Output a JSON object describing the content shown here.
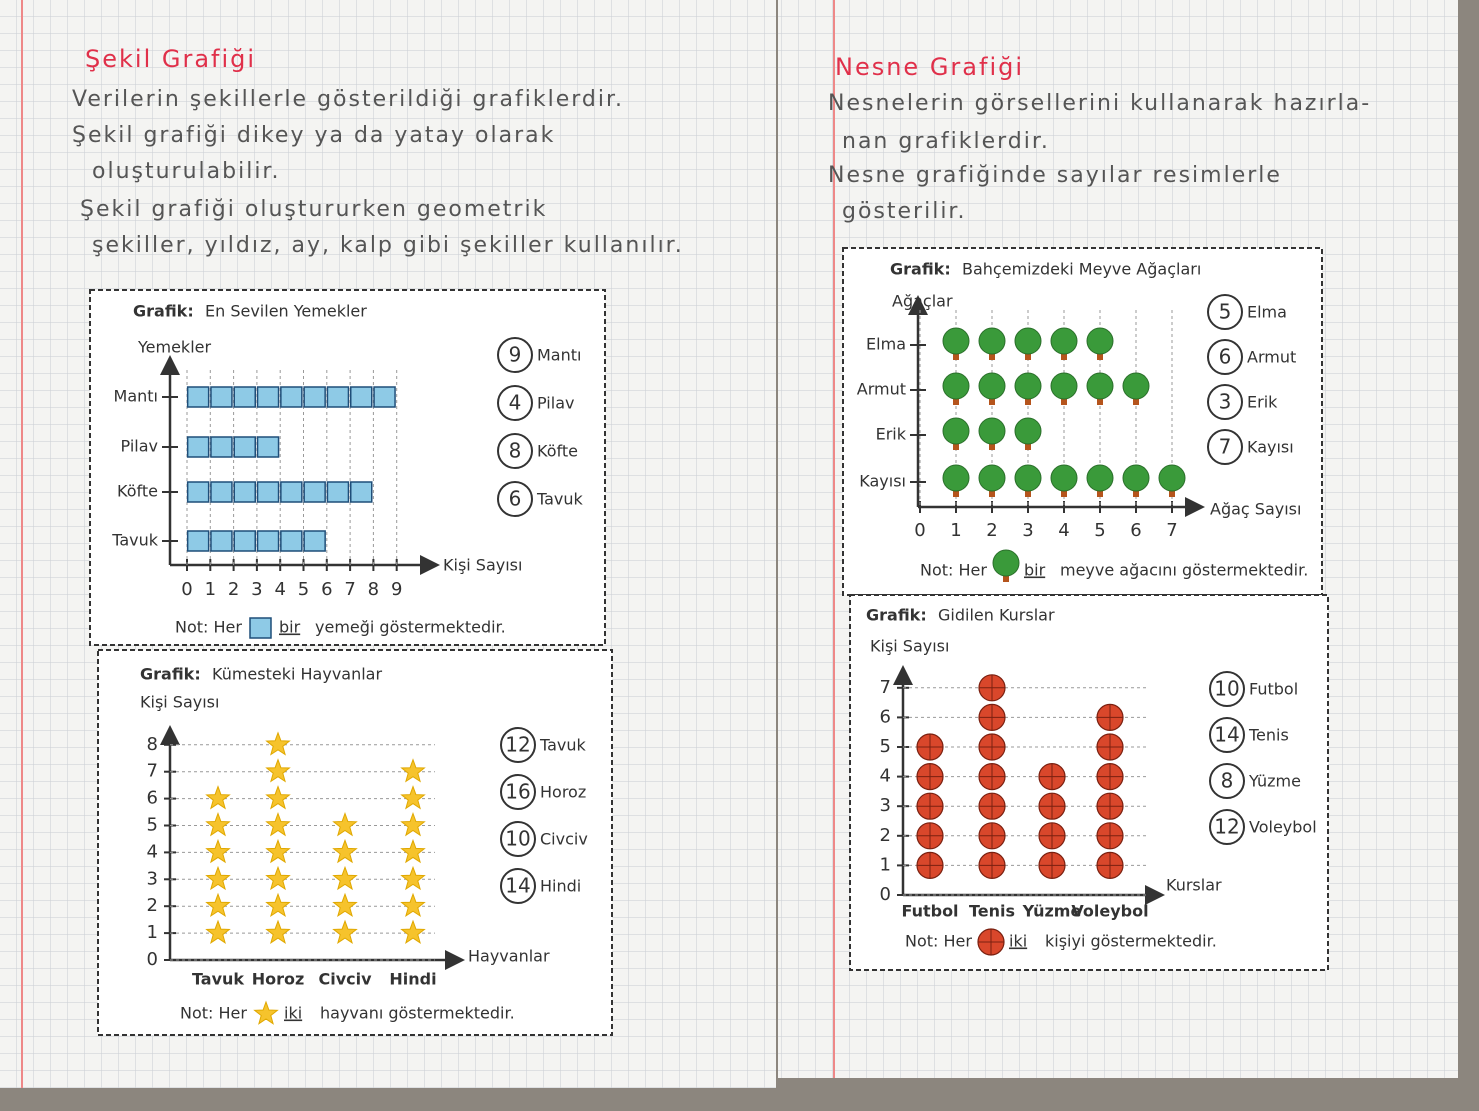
{
  "left_page": {
    "title": "Şekil Grafiği",
    "bullets": [
      [
        "Verilerin şekillerle gösterildiği grafiklerdir."
      ],
      [
        "Şekil grafiği dikey ya da yatay olarak",
        "oluşturulabilir."
      ],
      [
        "Şekil grafiği oluştururken geometrik",
        "şekiller, yıldız, ay, kalp gibi şekiller kullanılır."
      ]
    ]
  },
  "right_page": {
    "title": "Nesne Grafiği",
    "bullets": [
      [
        "Nesnelerin görsellerini kullanarak hazırla-",
        "nan grafiklerdir."
      ],
      [
        "Nesne grafiğinde sayılar resimlerle",
        "gösterilir."
      ]
    ]
  },
  "chart_data": [
    {
      "type": "pictograph",
      "orientation": "horizontal",
      "icon": "square",
      "color": "#8ecae6",
      "title_prefix": "Grafik:",
      "title": "En Sevilen Yemekler",
      "y_label": "Yemekler",
      "x_label": "Kişi Sayısı",
      "categories": [
        "Mantı",
        "Pilav",
        "Köfte",
        "Tavuk"
      ],
      "values": [
        9,
        4,
        8,
        6
      ],
      "xlim": [
        0,
        9
      ],
      "xticks": [
        0,
        1,
        2,
        3,
        4,
        5,
        6,
        7,
        8,
        9
      ],
      "grid": true,
      "note": {
        "start": "Not: Her",
        "count": "bir",
        "end": "yemeği göstermektedir."
      }
    },
    {
      "type": "pictograph",
      "orientation": "vertical",
      "icon": "star",
      "color": "#f6c32c",
      "title_prefix": "Grafik:",
      "title": "Kümesteki Hayvanlar",
      "y_label": "Kişi Sayısı",
      "x_label": "Hayvanlar",
      "categories": [
        "Tavuk",
        "Horoz",
        "Civciv",
        "Hindi"
      ],
      "values": [
        6,
        8,
        5,
        7
      ],
      "answers": [
        12,
        16,
        10,
        14
      ],
      "ylim": [
        0,
        8
      ],
      "yticks": [
        0,
        1,
        2,
        3,
        4,
        5,
        6,
        7,
        8
      ],
      "grid": true,
      "note": {
        "start": "Not: Her",
        "count": "iki",
        "end": "hayvanı göstermektedir."
      }
    },
    {
      "type": "pictograph",
      "orientation": "horizontal",
      "icon": "tree",
      "color": "#3a9a3a",
      "title_prefix": "Grafik:",
      "title": "Bahçemizdeki Meyve Ağaçları",
      "y_label": "Ağaçlar",
      "x_label": "Ağaç Sayısı",
      "categories": [
        "Elma",
        "Armut",
        "Erik",
        "Kayısı"
      ],
      "values": [
        5,
        6,
        3,
        7
      ],
      "xlim": [
        0,
        7
      ],
      "xticks": [
        0,
        1,
        2,
        3,
        4,
        5,
        6,
        7
      ],
      "grid": true,
      "note": {
        "start": "Not: Her",
        "count": "bir",
        "end": "meyve ağacını göstermektedir."
      }
    },
    {
      "type": "pictograph",
      "orientation": "vertical",
      "icon": "ball",
      "color": "#d9472b",
      "title_prefix": "Grafik:",
      "title": "Gidilen Kurslar",
      "y_label": "Kişi Sayısı",
      "x_label": "Kurslar",
      "categories": [
        "Futbol",
        "Tenis",
        "Yüzme",
        "Voleybol"
      ],
      "values": [
        5,
        7,
        4,
        6
      ],
      "answers": [
        10,
        14,
        8,
        12
      ],
      "ylim": [
        0,
        7
      ],
      "yticks": [
        0,
        1,
        2,
        3,
        4,
        5,
        6,
        7
      ],
      "grid": true,
      "note": {
        "start": "Not: Her",
        "count": "iki",
        "end": "kişiyi göstermektedir."
      }
    }
  ]
}
